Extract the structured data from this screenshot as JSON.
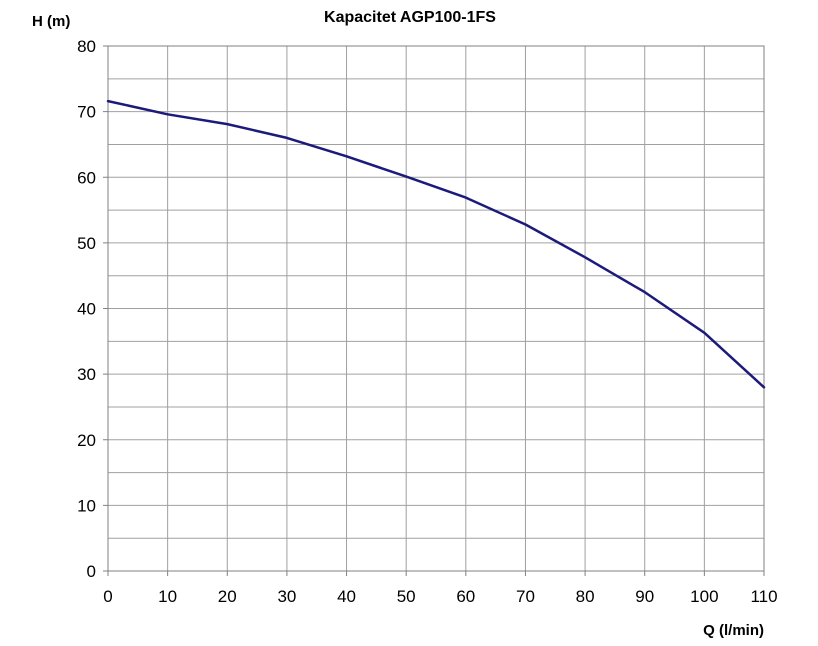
{
  "chart_data": {
    "type": "line",
    "title": "Kapacitet AGP100-1FS",
    "xlabel": "Q (l/min)",
    "ylabel": "H (m)",
    "xlim": [
      0,
      110
    ],
    "ylim": [
      0,
      80
    ],
    "x_ticks": [
      "0",
      "10",
      "20",
      "30",
      "40",
      "50",
      "60",
      "70",
      "80",
      "90",
      "100",
      "110"
    ],
    "y_ticks": [
      "0",
      "10",
      "20",
      "30",
      "40",
      "50",
      "60",
      "70",
      "80"
    ],
    "grid": true,
    "line_color": "#1c1a7a",
    "series": [
      {
        "x": [
          0,
          10,
          20,
          30,
          40,
          50,
          60,
          70,
          80,
          90,
          100,
          110
        ],
        "values": [
          71.6,
          69.6,
          68.1,
          66,
          63.2,
          60.1,
          56.9,
          52.8,
          47.8,
          42.5,
          36.3,
          28
        ]
      }
    ]
  }
}
